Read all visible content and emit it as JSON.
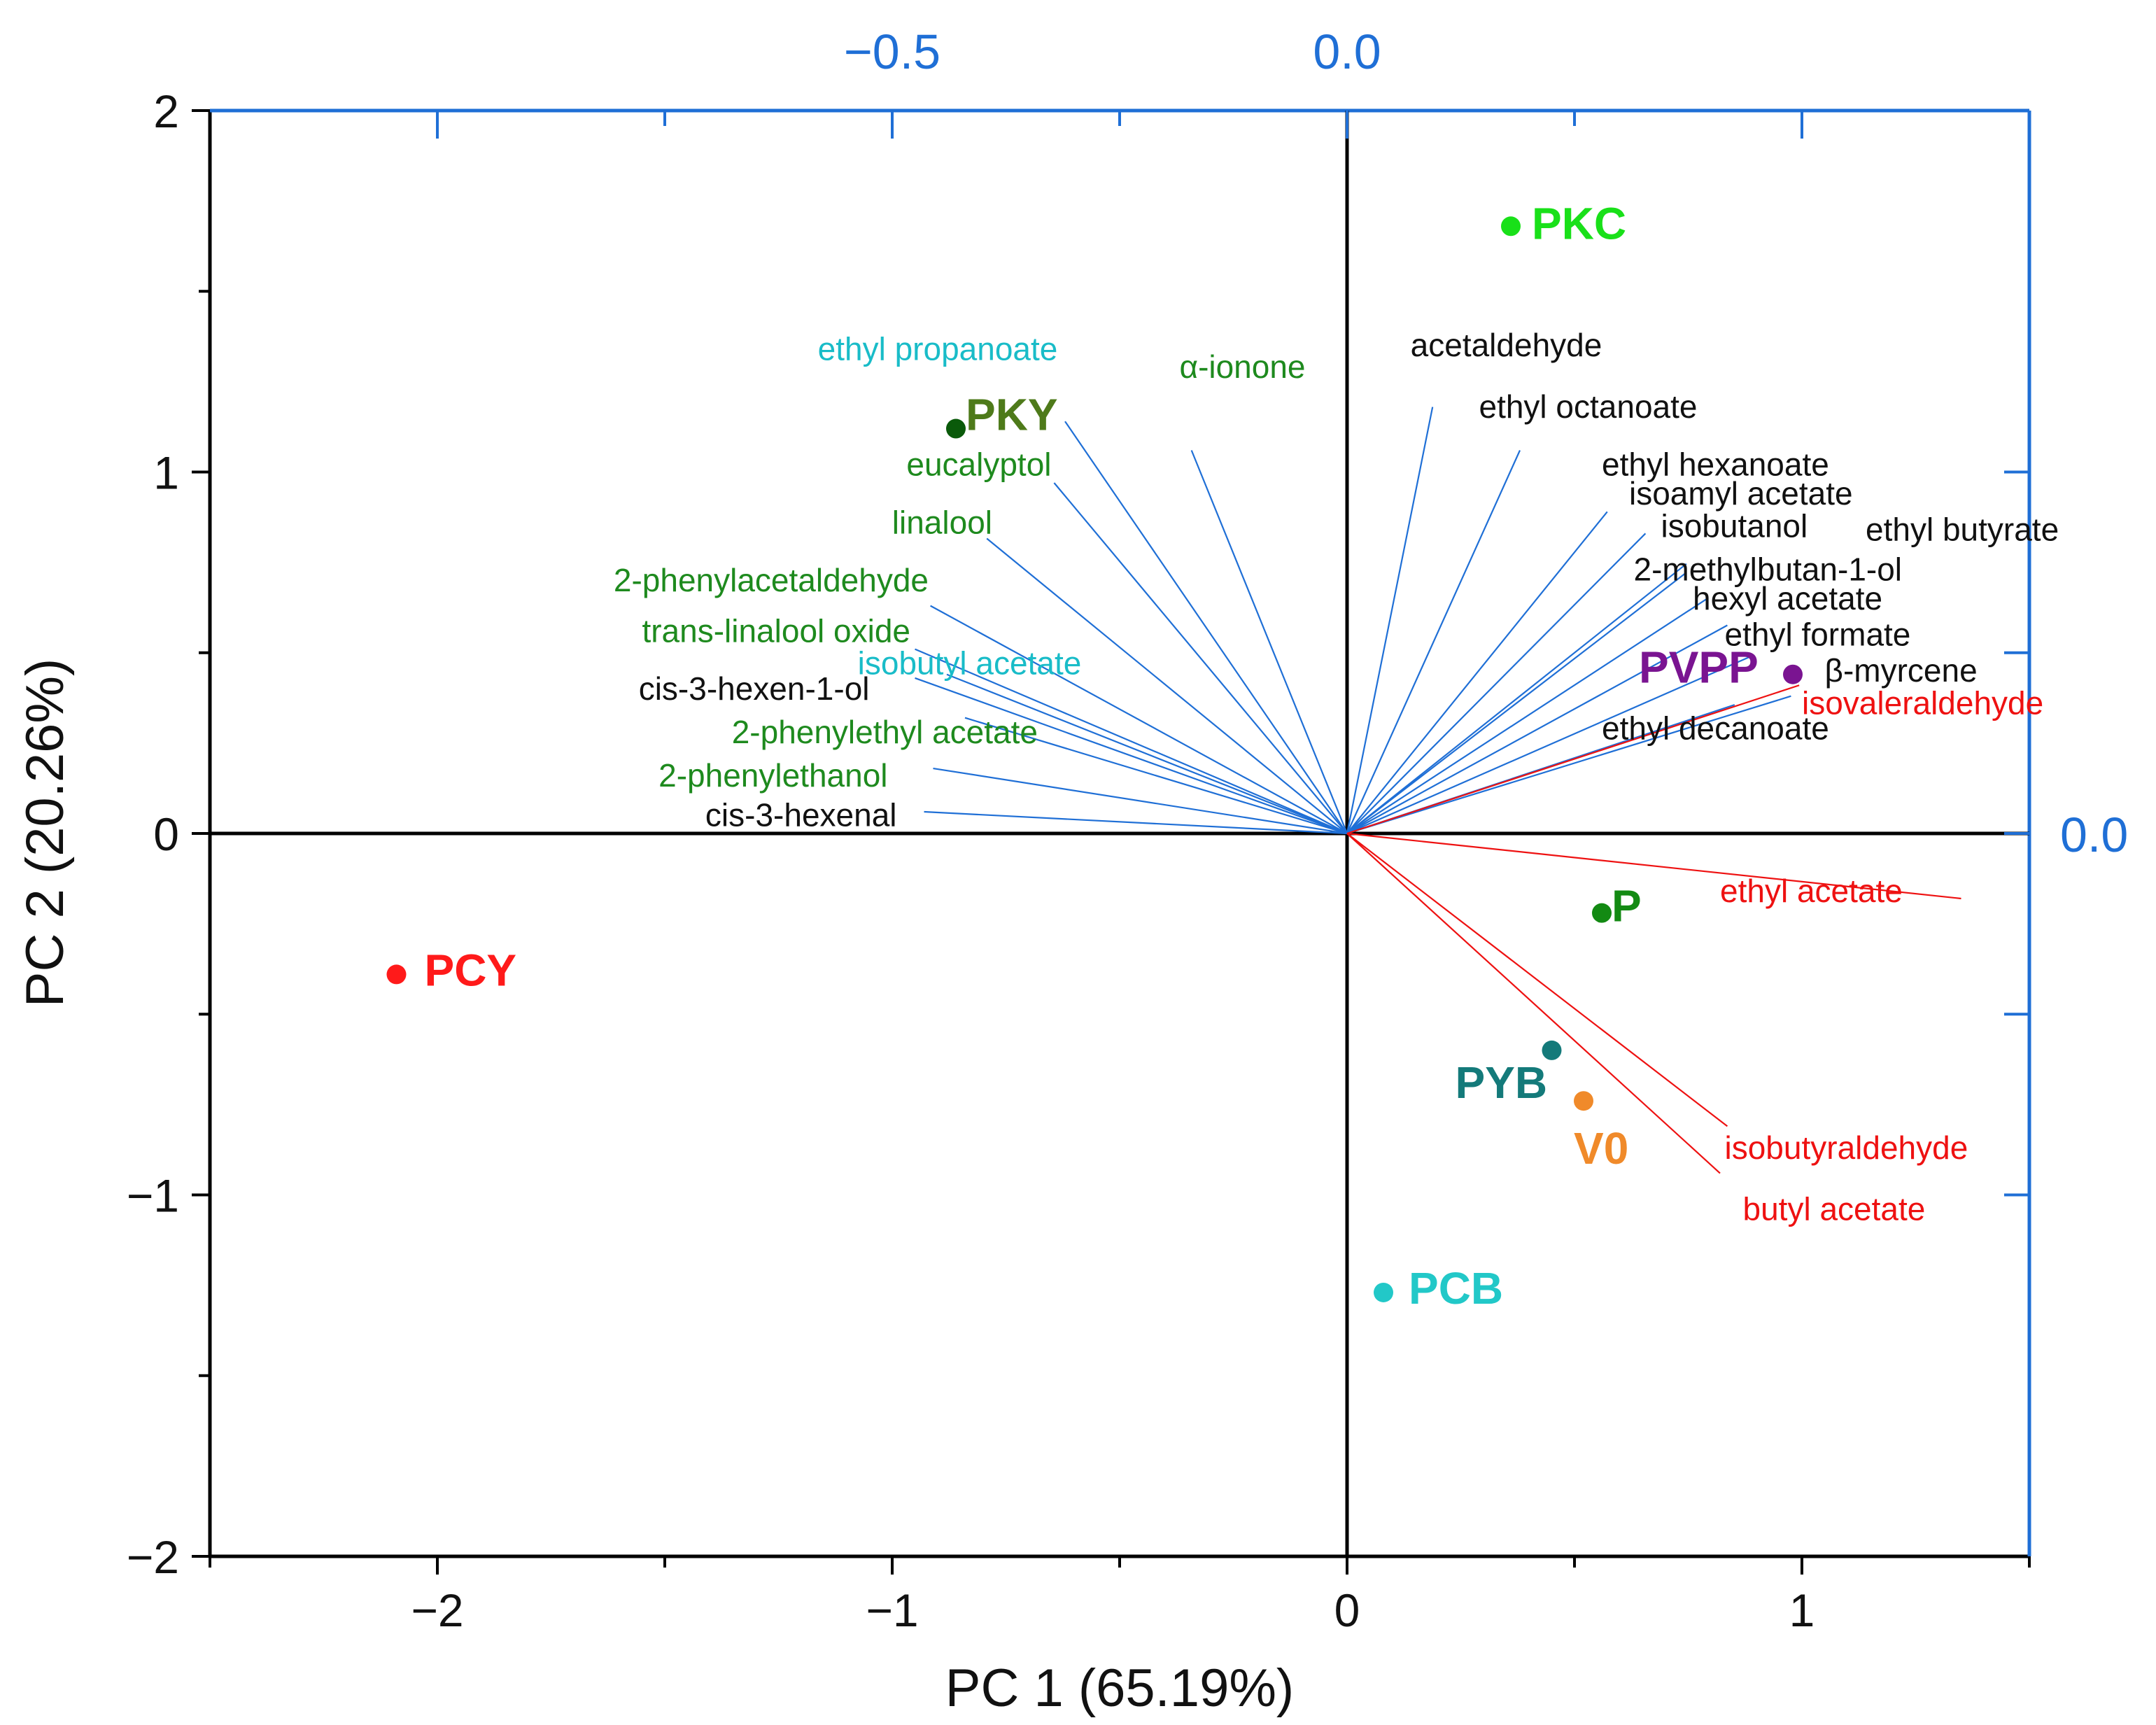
{
  "chart_data": {
    "type": "scatter",
    "subtype": "pca-biplot",
    "title": "",
    "xlabel": "PC 1 (65.19%)",
    "ylabel": "PC 2 (20.26%)",
    "xlim": [
      -2.5,
      1.5
    ],
    "ylim": [
      -2,
      2
    ],
    "x_ticks": [
      -2,
      -1,
      0,
      1
    ],
    "x_tick_labels": [
      "−2",
      "−1",
      "0",
      "1"
    ],
    "y_ticks": [
      -2,
      -1,
      0,
      1,
      2
    ],
    "y_tick_labels": [
      "−2",
      "−1",
      "0",
      "1",
      "2"
    ],
    "top_axis_ticks": [
      -0.5,
      0.0
    ],
    "top_axis_tick_labels": [
      "−0.5",
      "0.0"
    ],
    "right_axis_ticks": [
      0.0
    ],
    "right_axis_tick_labels": [
      "0.0"
    ],
    "loading_scale": 0.5,
    "grid": false,
    "colors": {
      "axis": "#000000",
      "loading_axis": "#1f6fd6",
      "vector_blue": "#1f6fd6",
      "vector_red": "#ee1111"
    },
    "scores": [
      {
        "name": "PKC",
        "x": 0.36,
        "y": 1.68,
        "color": "#19e019",
        "label_dx": 30,
        "label_dy": 18
      },
      {
        "name": "PKY",
        "x": -0.86,
        "y": 1.12,
        "color": "#0a5a0a",
        "label_color": "#4e7a1a",
        "label_dx": 14,
        "label_dy": 2
      },
      {
        "name": "PVPP",
        "x": 0.98,
        "y": 0.44,
        "color": "#7a1491",
        "label_dx": -220,
        "label_dy": 12
      },
      {
        "name": "P",
        "x": 0.56,
        "y": -0.22,
        "color": "#138a13",
        "label_dx": 14,
        "label_dy": 12
      },
      {
        "name": "PCY",
        "x": -2.09,
        "y": -0.39,
        "color": "#ff1a1a",
        "label_dx": 40,
        "label_dy": 16
      },
      {
        "name": "PYB",
        "x": 0.45,
        "y": -0.6,
        "color": "#147a7a",
        "label_dx": -138,
        "label_dy": 68
      },
      {
        "name": "V0",
        "x": 0.52,
        "y": -0.74,
        "color": "#f08a2a",
        "label_dx": -14,
        "label_dy": 90
      },
      {
        "name": "PCB",
        "x": 0.08,
        "y": -1.27,
        "color": "#22c8c8",
        "label_dx": 36,
        "label_dy": 16
      }
    ],
    "loadings": [
      {
        "name": "ethyl propanoate",
        "x": -0.31,
        "y": 0.57,
        "line_color": "#1f6fd6",
        "label_color": "#19bcc8",
        "lx": -0.9,
        "ly": 1.31,
        "anchor": "middle"
      },
      {
        "name": "α-ionone",
        "x": -0.171,
        "y": 0.53,
        "line_color": "#1f6fd6",
        "label_color": "#1e8a1e",
        "lx": -0.23,
        "ly": 1.26,
        "anchor": "middle"
      },
      {
        "name": "eucalyptol",
        "x": -0.322,
        "y": 0.485,
        "line_color": "#1f6fd6",
        "label_color": "#1e8a1e",
        "lx": -0.65,
        "ly": 0.99,
        "anchor": "end"
      },
      {
        "name": "linalool",
        "x": -0.396,
        "y": 0.408,
        "line_color": "#1f6fd6",
        "label_color": "#1e8a1e",
        "lx": -0.78,
        "ly": 0.83,
        "anchor": "end"
      },
      {
        "name": "2-phenylacetaldehyde",
        "x": -0.458,
        "y": 0.315,
        "line_color": "#1f6fd6",
        "label_color": "#1e8a1e",
        "lx": -0.92,
        "ly": 0.67,
        "anchor": "end"
      },
      {
        "name": "trans-linalool oxide",
        "x": -0.475,
        "y": 0.255,
        "line_color": "#1f6fd6",
        "label_color": "#1e8a1e",
        "lx": -0.96,
        "ly": 0.53,
        "anchor": "end"
      },
      {
        "name": "isobutyl acetate",
        "x": -0.44,
        "y": 0.22,
        "line_color": "#1f6fd6",
        "label_color": "#19bcc8",
        "lx": -0.83,
        "ly": 0.44,
        "anchor": "middle"
      },
      {
        "name": "cis-3-hexen-1-ol",
        "x": -0.475,
        "y": 0.215,
        "line_color": "#1f6fd6",
        "label_color": "#111111",
        "lx": -1.05,
        "ly": 0.37,
        "anchor": "end"
      },
      {
        "name": "2-phenylethyl acetate",
        "x": -0.42,
        "y": 0.16,
        "line_color": "#1f6fd6",
        "label_color": "#1e8a1e",
        "lx": -0.68,
        "ly": 0.25,
        "anchor": "end"
      },
      {
        "name": "2-phenylethanol",
        "x": -0.455,
        "y": 0.09,
        "line_color": "#1f6fd6",
        "label_color": "#1e8a1e",
        "lx": -1.01,
        "ly": 0.13,
        "anchor": "end"
      },
      {
        "name": "cis-3-hexenal",
        "x": -0.465,
        "y": 0.03,
        "line_color": "#1f6fd6",
        "label_color": "#111111",
        "lx": -0.99,
        "ly": 0.02,
        "anchor": "end"
      },
      {
        "name": "acetaldehyde",
        "x": 0.094,
        "y": 0.59,
        "line_color": "#1f6fd6",
        "label_color": "#111111",
        "lx": 0.35,
        "ly": 1.32,
        "anchor": "middle"
      },
      {
        "name": "ethyl octanoate",
        "x": 0.19,
        "y": 0.53,
        "line_color": "#1f6fd6",
        "label_color": "#111111",
        "lx": 0.53,
        "ly": 1.15,
        "anchor": "middle"
      },
      {
        "name": "ethyl hexanoate",
        "x": 0.286,
        "y": 0.445,
        "line_color": "#1f6fd6",
        "label_color": "#111111",
        "lx": 0.56,
        "ly": 0.99,
        "anchor": "start"
      },
      {
        "name": "isoamyl acetate",
        "x": 0.328,
        "y": 0.415,
        "line_color": "#1f6fd6",
        "label_color": "#111111",
        "lx": 0.62,
        "ly": 0.91,
        "anchor": "start"
      },
      {
        "name": "isobutanol",
        "x": 0.372,
        "y": 0.36,
        "line_color": "#1f6fd6",
        "label_color": "#111111",
        "lx": 0.69,
        "ly": 0.82,
        "anchor": "start"
      },
      {
        "name": "ethyl butyrate",
        "x": 0.373,
        "y": 0.373,
        "line_color": "#1f6fd6",
        "label_color": "#111111",
        "lx": 1.14,
        "ly": 0.81,
        "anchor": "start"
      },
      {
        "name": "2-methylbutan-1-ol",
        "x": 0.396,
        "y": 0.325,
        "line_color": "#1f6fd6",
        "label_color": "#111111",
        "lx": 0.63,
        "ly": 0.7,
        "anchor": "start"
      },
      {
        "name": "hexyl acetate",
        "x": 0.418,
        "y": 0.288,
        "line_color": "#1f6fd6",
        "label_color": "#111111",
        "lx": 0.76,
        "ly": 0.62,
        "anchor": "start"
      },
      {
        "name": "ethyl formate",
        "x": 0.444,
        "y": 0.245,
        "line_color": "#1f6fd6",
        "label_color": "#111111",
        "lx": 0.83,
        "ly": 0.52,
        "anchor": "start"
      },
      {
        "name": "β-myrcene",
        "x": 0.488,
        "y": 0.19,
        "line_color": "#1f6fd6",
        "label_color": "#111111",
        "lx": 1.05,
        "ly": 0.42,
        "anchor": "start"
      },
      {
        "name": "ethyl decanoate",
        "x": 0.426,
        "y": 0.178,
        "line_color": "#1f6fd6",
        "label_color": "#111111",
        "lx": 0.56,
        "ly": 0.26,
        "anchor": "start"
      },
      {
        "name": "isovaleraldehyde",
        "x": 0.497,
        "y": 0.205,
        "line_color": "#ee1111",
        "label_color": "#ee1111",
        "lx": 1.0,
        "ly": 0.33,
        "anchor": "start"
      },
      {
        "name": "ethyl acetate",
        "x": 0.675,
        "y": -0.09,
        "line_color": "#ee1111",
        "label_color": "#ee1111",
        "lx": 0.82,
        "ly": -0.19,
        "anchor": "start"
      },
      {
        "name": "isobutyraldehyde",
        "x": 0.418,
        "y": -0.405,
        "line_color": "#ee1111",
        "label_color": "#ee1111",
        "lx": 0.83,
        "ly": -0.9,
        "anchor": "start"
      },
      {
        "name": "butyl acetate",
        "x": 0.41,
        "y": -0.47,
        "line_color": "#ee1111",
        "label_color": "#ee1111",
        "lx": 0.87,
        "ly": -1.07,
        "anchor": "start"
      }
    ]
  }
}
